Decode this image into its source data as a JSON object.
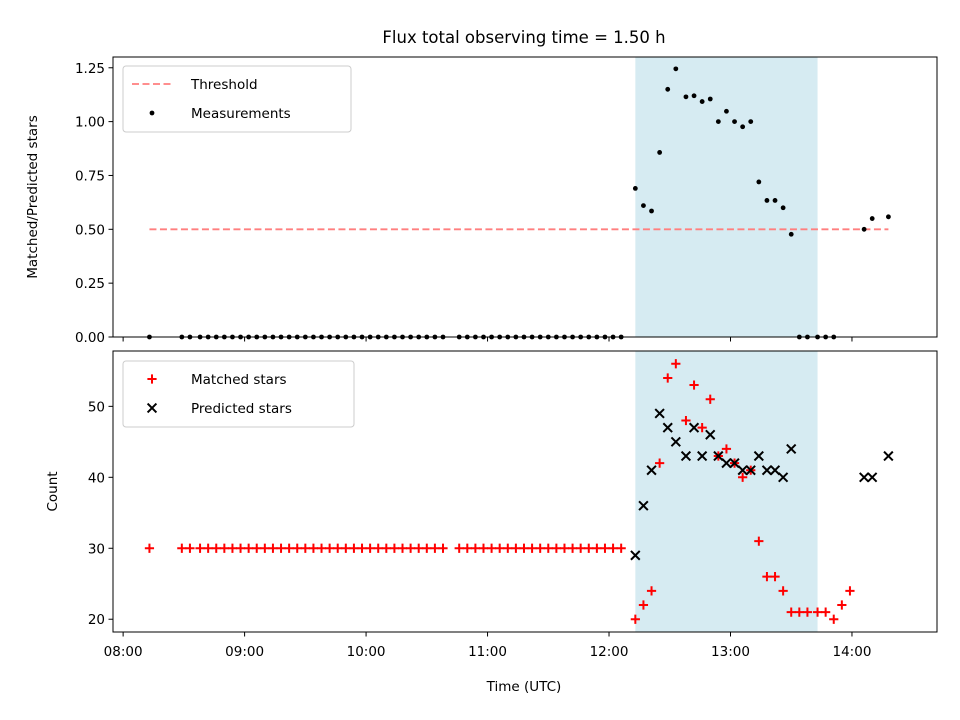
{
  "title": "Flux total observing time = 1.50 h",
  "colors": {
    "threshold": "#ff7f7f",
    "measurement": "#000000",
    "matched": "#ff0000",
    "predicted": "#000000",
    "span": "#add8e6"
  },
  "chart_data": [
    {
      "type": "scatter",
      "ylabel": "Matched/Predicted stars",
      "xlabel": "",
      "ylim": [
        0,
        1.3
      ],
      "yticks": [
        0,
        0.25,
        0.5,
        0.75,
        1.0,
        1.25
      ],
      "ytick_labels": [
        "0.00",
        "0.25",
        "0.50",
        "0.75",
        "1.00",
        "1.25"
      ],
      "legend_position": "top-left",
      "threshold": {
        "name": "Threshold",
        "value": 0.5,
        "x_start": "08:13",
        "x_end": "14:18"
      },
      "highlight_span": {
        "start": "12:13",
        "end": "13:43"
      },
      "series": [
        {
          "name": "Measurements",
          "points": [
            [
              "08:13",
              0
            ],
            [
              "08:29",
              0
            ],
            [
              "08:33",
              0
            ],
            [
              "08:38",
              0
            ],
            [
              "08:42",
              0
            ],
            [
              "08:46",
              0
            ],
            [
              "08:50",
              0
            ],
            [
              "08:54",
              0
            ],
            [
              "08:58",
              0
            ],
            [
              "09:02",
              0
            ],
            [
              "09:06",
              0
            ],
            [
              "09:10",
              0
            ],
            [
              "09:14",
              0
            ],
            [
              "09:18",
              0
            ],
            [
              "09:22",
              0
            ],
            [
              "09:26",
              0
            ],
            [
              "09:30",
              0
            ],
            [
              "09:34",
              0
            ],
            [
              "09:38",
              0
            ],
            [
              "09:42",
              0
            ],
            [
              "09:46",
              0
            ],
            [
              "09:50",
              0
            ],
            [
              "09:54",
              0
            ],
            [
              "09:58",
              0
            ],
            [
              "10:02",
              0
            ],
            [
              "10:06",
              0
            ],
            [
              "10:10",
              0
            ],
            [
              "10:14",
              0
            ],
            [
              "10:18",
              0
            ],
            [
              "10:22",
              0
            ],
            [
              "10:26",
              0
            ],
            [
              "10:30",
              0
            ],
            [
              "10:34",
              0
            ],
            [
              "10:38",
              0
            ],
            [
              "10:46",
              0
            ],
            [
              "10:50",
              0
            ],
            [
              "10:54",
              0
            ],
            [
              "10:58",
              0
            ],
            [
              "11:02",
              0
            ],
            [
              "11:06",
              0
            ],
            [
              "11:10",
              0
            ],
            [
              "11:14",
              0
            ],
            [
              "11:18",
              0
            ],
            [
              "11:22",
              0
            ],
            [
              "11:26",
              0
            ],
            [
              "11:30",
              0
            ],
            [
              "11:34",
              0
            ],
            [
              "11:38",
              0
            ],
            [
              "11:42",
              0
            ],
            [
              "11:46",
              0
            ],
            [
              "11:50",
              0
            ],
            [
              "11:54",
              0
            ],
            [
              "11:58",
              0
            ],
            [
              "12:02",
              0
            ],
            [
              "12:06",
              0
            ],
            [
              "12:13",
              0.69
            ],
            [
              "12:17",
              0.61
            ],
            [
              "12:21",
              0.585
            ],
            [
              "12:25",
              0.857
            ],
            [
              "12:29",
              1.15
            ],
            [
              "12:33",
              1.245
            ],
            [
              "12:38",
              1.115
            ],
            [
              "12:42",
              1.12
            ],
            [
              "12:46",
              1.093
            ],
            [
              "12:50",
              1.105
            ],
            [
              "12:54",
              1.0
            ],
            [
              "12:58",
              1.048
            ],
            [
              "13:02",
              1.0
            ],
            [
              "13:06",
              0.976
            ],
            [
              "13:10",
              1.0
            ],
            [
              "13:14",
              0.72
            ],
            [
              "13:18",
              0.634
            ],
            [
              "13:22",
              0.634
            ],
            [
              "13:26",
              0.6
            ],
            [
              "13:30",
              0.477
            ],
            [
              "13:34",
              0
            ],
            [
              "13:38",
              0
            ],
            [
              "13:43",
              0
            ],
            [
              "13:47",
              0
            ],
            [
              "13:51",
              0
            ],
            [
              "14:06",
              0.5
            ],
            [
              "14:10",
              0.55
            ],
            [
              "14:18",
              0.558
            ]
          ]
        }
      ]
    },
    {
      "type": "scatter",
      "ylabel": "Count",
      "xlabel": "Time (UTC)",
      "ylim": [
        18.2,
        57.8
      ],
      "yticks": [
        20,
        30,
        40,
        50
      ],
      "ytick_labels": [
        "20",
        "30",
        "40",
        "50"
      ],
      "xticks": [
        "08:00",
        "09:00",
        "10:00",
        "11:00",
        "12:00",
        "13:00",
        "14:00"
      ],
      "xtick_labels": [
        "08:00",
        "09:00",
        "10:00",
        "11:00",
        "12:00",
        "13:00",
        "14:00"
      ],
      "xlim": [
        "07:55",
        "14:42"
      ],
      "legend_position": "top-left",
      "highlight_span": {
        "start": "12:13",
        "end": "13:43"
      },
      "series": [
        {
          "name": "Matched stars",
          "marker": "plus",
          "points": [
            [
              "08:13",
              30
            ],
            [
              "08:29",
              30
            ],
            [
              "08:33",
              30
            ],
            [
              "08:38",
              30
            ],
            [
              "08:42",
              30
            ],
            [
              "08:46",
              30
            ],
            [
              "08:50",
              30
            ],
            [
              "08:54",
              30
            ],
            [
              "08:58",
              30
            ],
            [
              "09:02",
              30
            ],
            [
              "09:06",
              30
            ],
            [
              "09:10",
              30
            ],
            [
              "09:14",
              30
            ],
            [
              "09:18",
              30
            ],
            [
              "09:22",
              30
            ],
            [
              "09:26",
              30
            ],
            [
              "09:30",
              30
            ],
            [
              "09:34",
              30
            ],
            [
              "09:38",
              30
            ],
            [
              "09:42",
              30
            ],
            [
              "09:46",
              30
            ],
            [
              "09:50",
              30
            ],
            [
              "09:54",
              30
            ],
            [
              "09:58",
              30
            ],
            [
              "10:02",
              30
            ],
            [
              "10:06",
              30
            ],
            [
              "10:10",
              30
            ],
            [
              "10:14",
              30
            ],
            [
              "10:18",
              30
            ],
            [
              "10:22",
              30
            ],
            [
              "10:26",
              30
            ],
            [
              "10:30",
              30
            ],
            [
              "10:34",
              30
            ],
            [
              "10:38",
              30
            ],
            [
              "10:46",
              30
            ],
            [
              "10:50",
              30
            ],
            [
              "10:54",
              30
            ],
            [
              "10:58",
              30
            ],
            [
              "11:02",
              30
            ],
            [
              "11:06",
              30
            ],
            [
              "11:10",
              30
            ],
            [
              "11:14",
              30
            ],
            [
              "11:18",
              30
            ],
            [
              "11:22",
              30
            ],
            [
              "11:26",
              30
            ],
            [
              "11:30",
              30
            ],
            [
              "11:34",
              30
            ],
            [
              "11:38",
              30
            ],
            [
              "11:42",
              30
            ],
            [
              "11:46",
              30
            ],
            [
              "11:50",
              30
            ],
            [
              "11:54",
              30
            ],
            [
              "11:58",
              30
            ],
            [
              "12:02",
              30
            ],
            [
              "12:06",
              30
            ],
            [
              "12:13",
              20
            ],
            [
              "12:17",
              22
            ],
            [
              "12:21",
              24
            ],
            [
              "12:25",
              42
            ],
            [
              "12:29",
              54
            ],
            [
              "12:33",
              56
            ],
            [
              "12:38",
              48
            ],
            [
              "12:42",
              53
            ],
            [
              "12:46",
              47
            ],
            [
              "12:50",
              51
            ],
            [
              "12:54",
              43
            ],
            [
              "12:58",
              44
            ],
            [
              "13:02",
              42
            ],
            [
              "13:06",
              40
            ],
            [
              "13:10",
              41
            ],
            [
              "13:14",
              31
            ],
            [
              "13:18",
              26
            ],
            [
              "13:22",
              26
            ],
            [
              "13:26",
              24
            ],
            [
              "13:30",
              21
            ],
            [
              "13:34",
              21
            ],
            [
              "13:38",
              21
            ],
            [
              "13:43",
              21
            ],
            [
              "13:47",
              21
            ],
            [
              "13:51",
              20
            ],
            [
              "13:55",
              22
            ],
            [
              "13:59",
              24
            ]
          ]
        },
        {
          "name": "Predicted stars",
          "marker": "x",
          "points": [
            [
              "12:13",
              29
            ],
            [
              "12:17",
              36
            ],
            [
              "12:21",
              41
            ],
            [
              "12:25",
              49
            ],
            [
              "12:29",
              47
            ],
            [
              "12:33",
              45
            ],
            [
              "12:38",
              43
            ],
            [
              "12:42",
              47
            ],
            [
              "12:46",
              43
            ],
            [
              "12:50",
              46
            ],
            [
              "12:54",
              43
            ],
            [
              "12:58",
              42
            ],
            [
              "13:02",
              42
            ],
            [
              "13:06",
              41
            ],
            [
              "13:10",
              41
            ],
            [
              "13:14",
              43
            ],
            [
              "13:18",
              41
            ],
            [
              "13:22",
              41
            ],
            [
              "13:26",
              40
            ],
            [
              "13:30",
              44
            ],
            [
              "14:06",
              40
            ],
            [
              "14:10",
              40
            ],
            [
              "14:18",
              43
            ]
          ]
        }
      ]
    }
  ]
}
